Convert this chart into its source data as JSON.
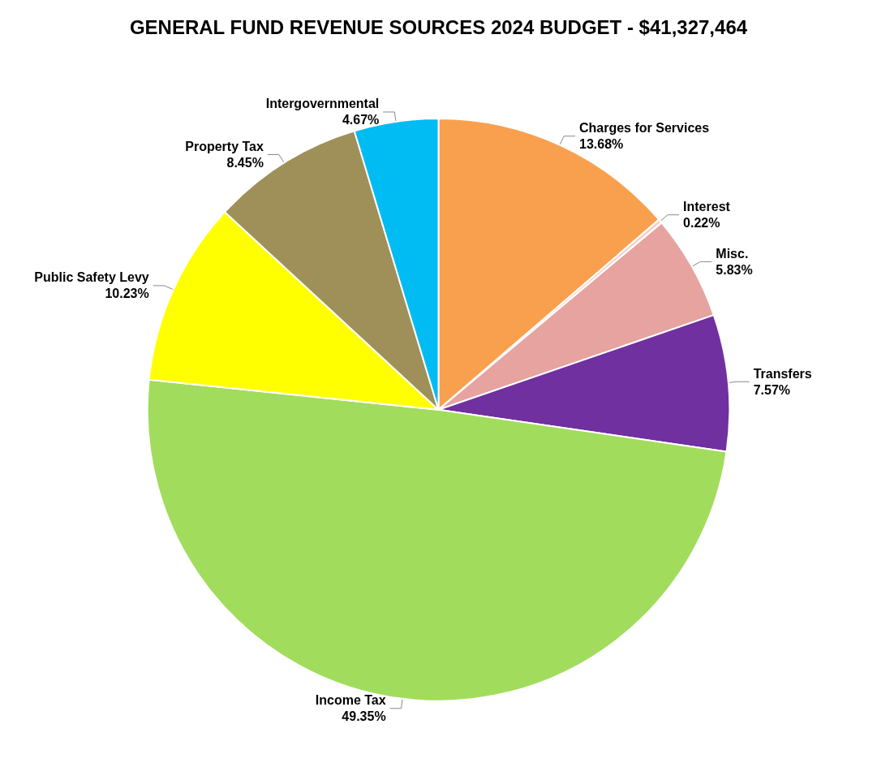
{
  "chart_data": {
    "type": "pie",
    "title": "GENERAL FUND REVENUE SOURCES 2024 BUDGET - $41,327,464",
    "categories": [
      "Charges for Services",
      "Interest",
      "Misc.",
      "Transfers",
      "Income Tax",
      "Public Safety Levy",
      "Property Tax",
      "Intergovernmental"
    ],
    "values": [
      13.68,
      0.22,
      5.83,
      7.57,
      49.35,
      10.23,
      8.45,
      4.67
    ],
    "colors": [
      "#f9a04f",
      "#f6cfc9",
      "#e6a3a0",
      "#7030a0",
      "#a2dc5c",
      "#ffff00",
      "#9e9058",
      "#00bcf2"
    ],
    "value_labels": [
      "13.68%",
      "0.22%",
      "5.83%",
      "7.57%",
      "49.35%",
      "10.23%",
      "8.45%",
      "4.67%"
    ],
    "legend": false
  }
}
